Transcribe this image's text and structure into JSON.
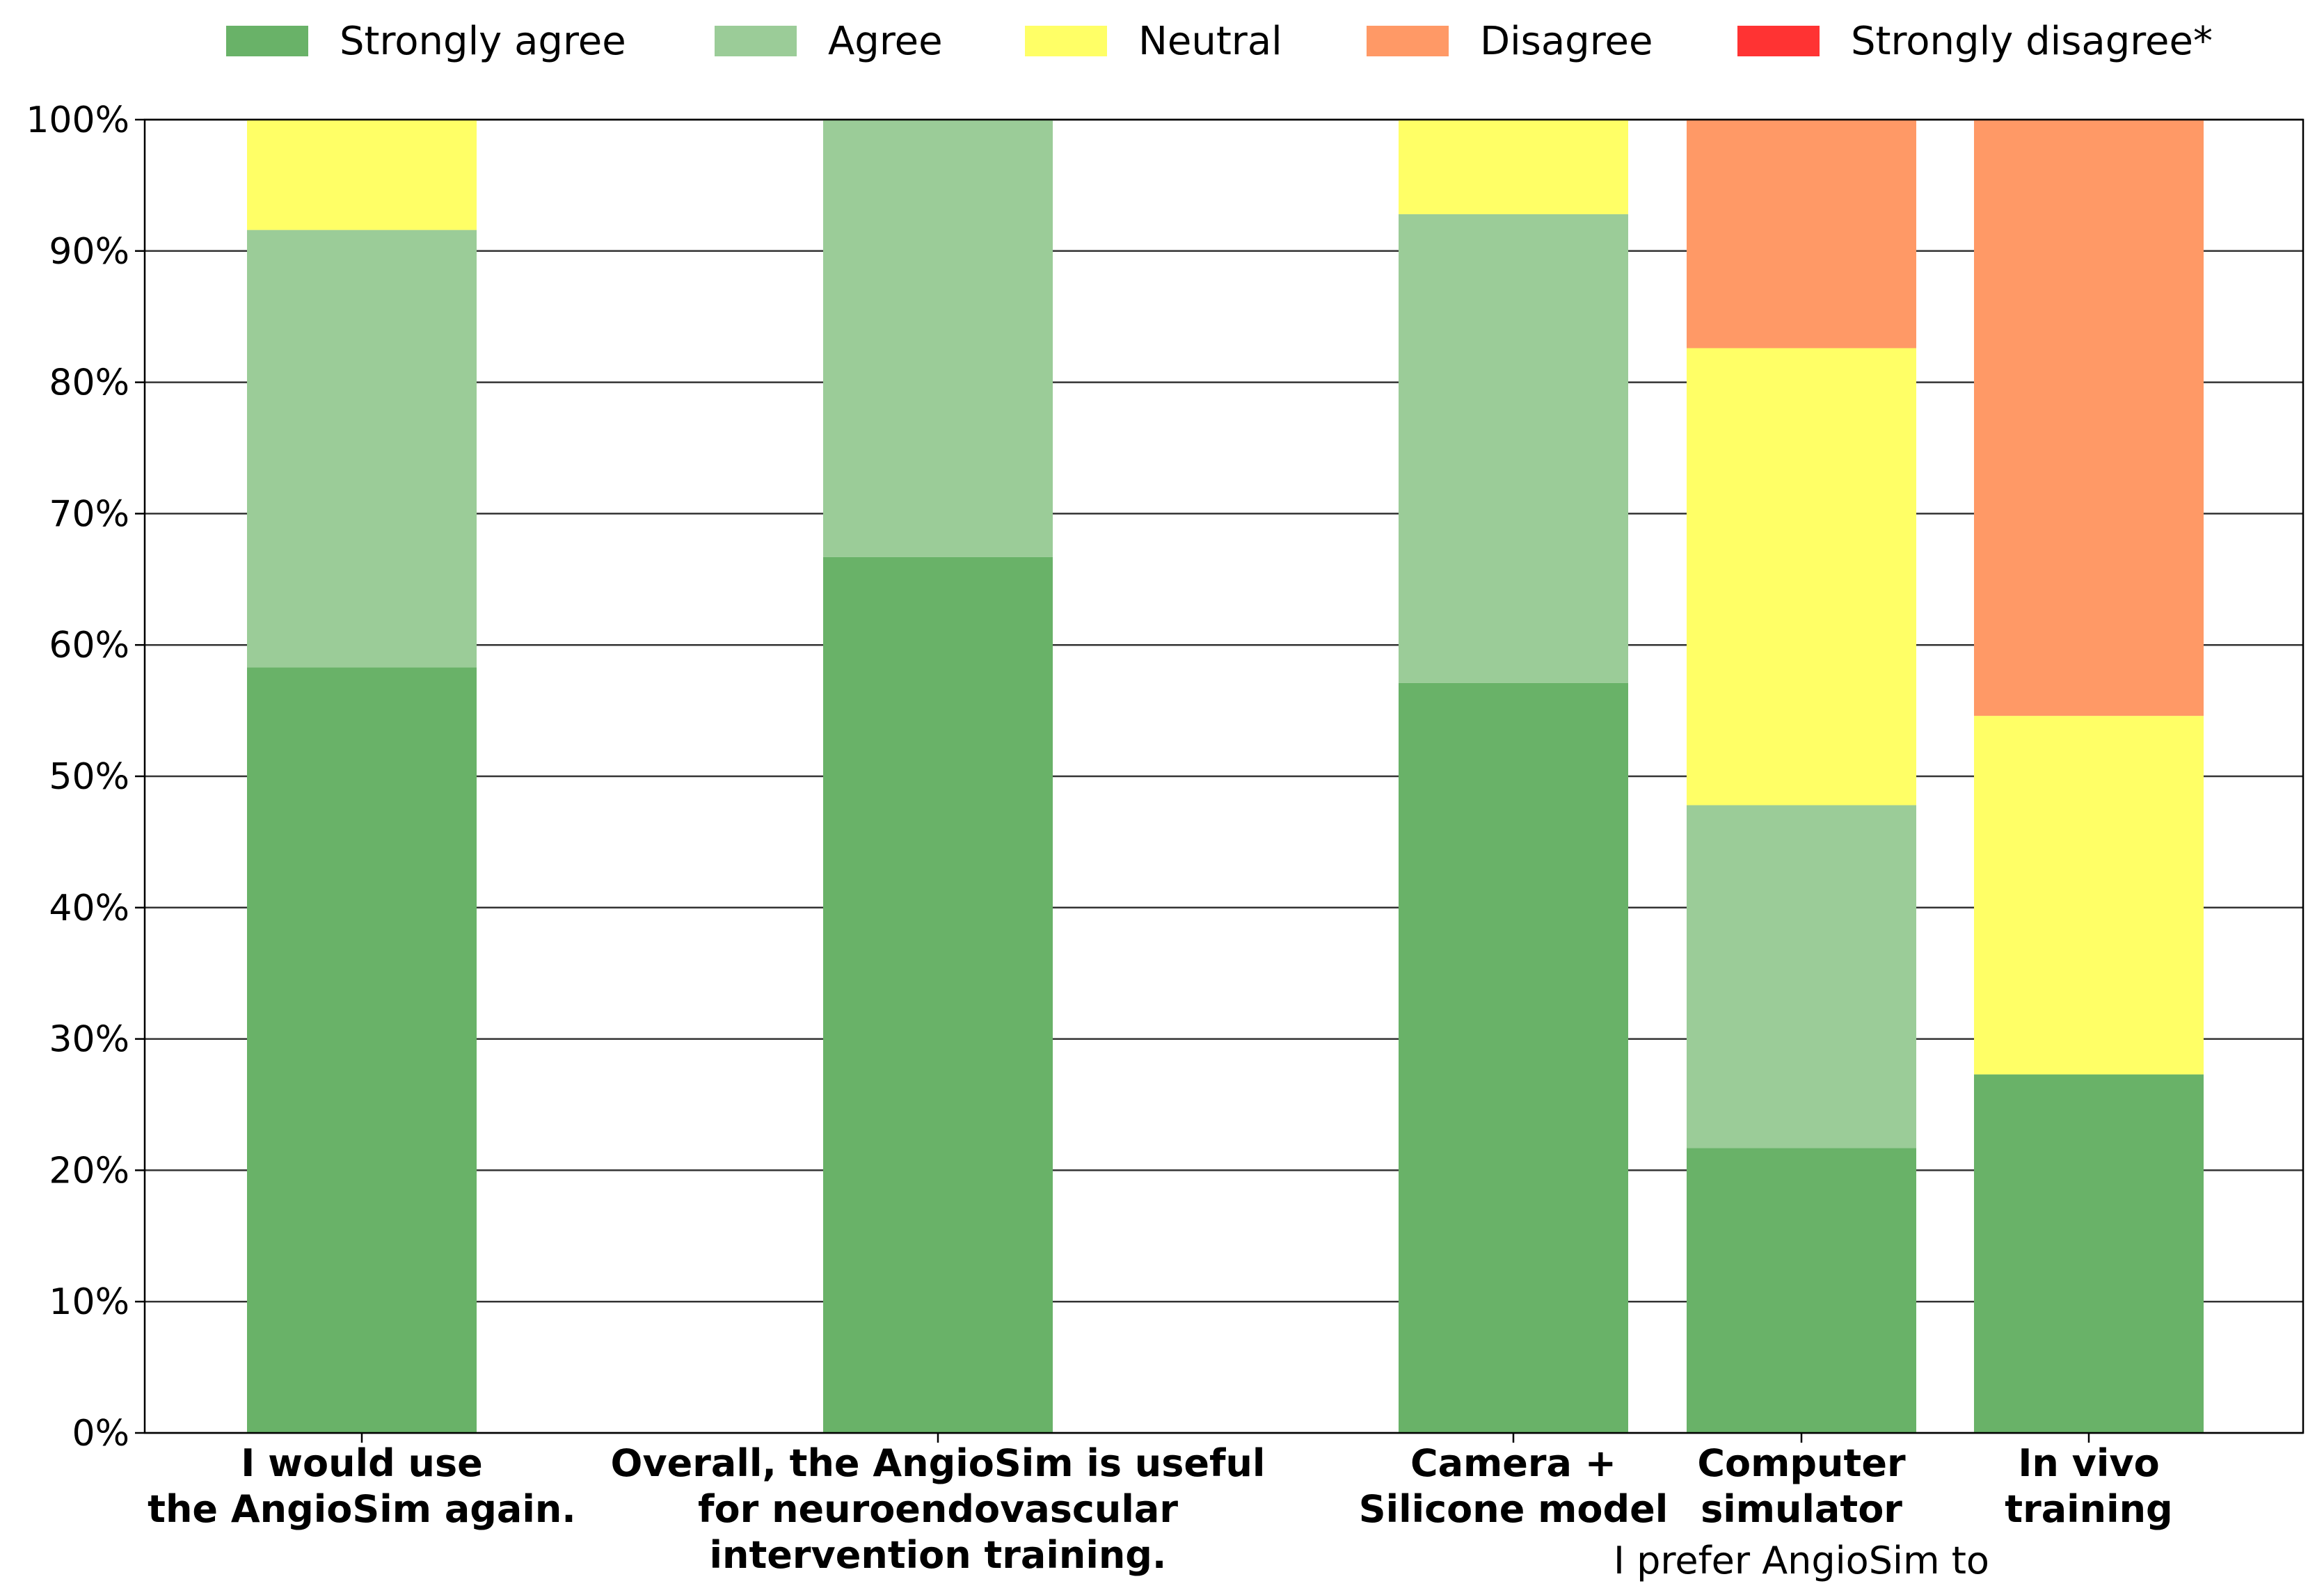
{
  "chart_data": {
    "type": "bar",
    "stacked": true,
    "title": "",
    "xlabel": "",
    "ylabel": "",
    "ylim": [
      0,
      100
    ],
    "yticks": [
      0,
      10,
      20,
      30,
      40,
      50,
      60,
      70,
      80,
      90,
      100
    ],
    "ytick_labels": [
      "0%",
      "10%",
      "20%",
      "30%",
      "40%",
      "50%",
      "60%",
      "70%",
      "80%",
      "90%",
      "100%"
    ],
    "grid": "horizontal",
    "legend_position": "top",
    "categories": [
      [
        "I would use",
        "the AngioSim again."
      ],
      [
        "Overall, the AngioSim is useful",
        "for neuroendovascular",
        "intervention training."
      ],
      [
        "Camera +",
        "Silicone model"
      ],
      [
        "Computer",
        "simulator"
      ],
      [
        "In vivo",
        "training"
      ]
    ],
    "group_label": "I prefer AngioSim to",
    "series": [
      {
        "name": "Strongly agree",
        "color": "#69b268",
        "values": [
          58.3,
          66.7,
          57.1,
          21.7,
          27.3
        ]
      },
      {
        "name": "Agree",
        "color": "#9bcc98",
        "values": [
          33.3,
          33.3,
          35.7,
          26.1,
          0
        ]
      },
      {
        "name": "Neutral",
        "color": "#ffff66",
        "values": [
          8.4,
          0,
          7.2,
          34.8,
          27.3
        ]
      },
      {
        "name": "Disagree",
        "color": "#ff9966",
        "values": [
          0,
          0,
          0,
          17.4,
          45.4
        ]
      },
      {
        "name": "Strongly disagree*",
        "color": "#ff3333",
        "values": [
          0,
          0,
          0,
          0,
          0
        ]
      }
    ]
  }
}
